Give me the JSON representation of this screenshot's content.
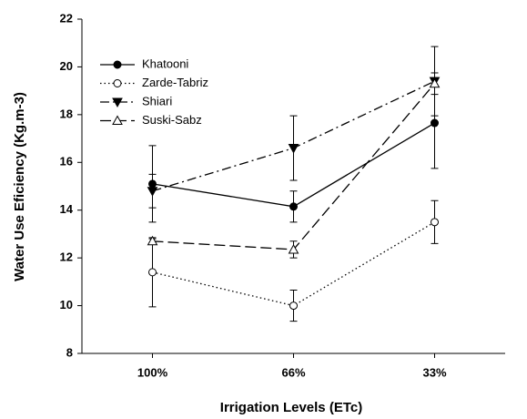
{
  "chart_data": {
    "type": "line",
    "x_label": "Irrigation Levels (ETc)",
    "y_label": "Water Use Eficiency (Kg.m-3)",
    "categories": [
      "100%",
      "66%",
      "33%"
    ],
    "ylim": [
      8,
      22
    ],
    "yticks": [
      8,
      10,
      12,
      14,
      16,
      18,
      20,
      22
    ],
    "legend": "upper-left",
    "series": [
      {
        "name": "Khatooni",
        "color": "#000000",
        "dash": "solid",
        "marker": "circle",
        "filled": true,
        "values": [
          15.1,
          14.15,
          17.65
        ],
        "errors": [
          1.6,
          0.65,
          1.9
        ]
      },
      {
        "name": "Zarde-Tabriz",
        "color": "#000000",
        "dash": "dotted",
        "marker": "circle",
        "filled": false,
        "values": [
          11.4,
          10.0,
          13.5
        ],
        "errors": [
          1.45,
          0.65,
          0.9
        ]
      },
      {
        "name": "Shiari",
        "color": "#000000",
        "dash": "dashdot",
        "marker": "triangle-down",
        "filled": true,
        "values": [
          14.8,
          16.6,
          19.4
        ],
        "errors": [
          0.7,
          1.35,
          1.45
        ]
      },
      {
        "name": "Suski-Sabz",
        "color": "#000000",
        "dash": "dashed",
        "marker": "triangle-up",
        "filled": false,
        "values": [
          12.7,
          12.35,
          19.3
        ],
        "errors": [
          0.1,
          0.35,
          0.45
        ]
      }
    ]
  }
}
